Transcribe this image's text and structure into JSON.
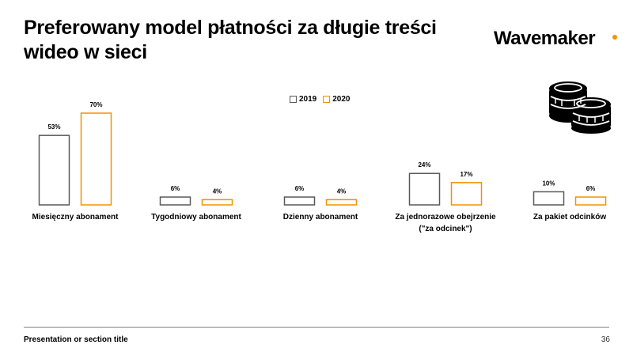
{
  "title": "Preferowany model płatności za długie treści wideo w sieci",
  "logo": {
    "text": "Wavemaker",
    "dot_color": "#F39200"
  },
  "coins_icon": "stack-of-coins-icon",
  "footer": {
    "section_title": "Presentation or section title",
    "page_number": "36"
  },
  "chart_data": {
    "type": "bar",
    "categories": [
      [
        "Miesięczny abonament"
      ],
      [
        "Tygodniowy abonament"
      ],
      [
        "Dzienny abonament"
      ],
      [
        "Za jednorazowe obejrzenie",
        "(\"za odcinek\")"
      ],
      [
        "Za pakiet odcinków"
      ]
    ],
    "series": [
      {
        "name": "2019",
        "color": "#595959",
        "values": [
          53,
          6,
          6,
          24,
          10
        ],
        "labels": [
          "53%",
          "6%",
          "6%",
          "24%",
          "10%"
        ]
      },
      {
        "name": "2020",
        "color": "#F39200",
        "values": [
          70,
          4,
          4,
          17,
          6
        ],
        "labels": [
          "70%",
          "4%",
          "4%",
          "17%",
          "6%"
        ]
      }
    ],
    "legend_position": "top-center",
    "ylim": [
      0,
      70
    ],
    "grid": false
  }
}
